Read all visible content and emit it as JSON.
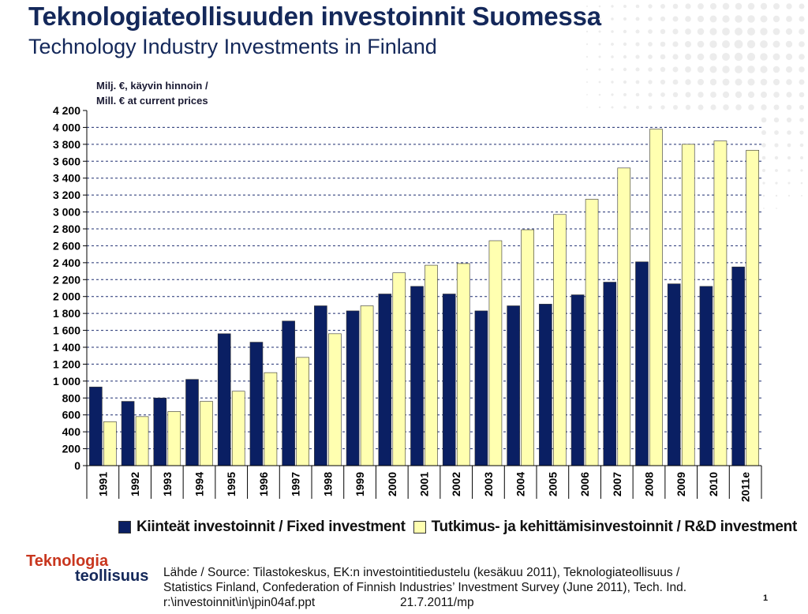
{
  "header": {
    "title_fi": "Teknologiateollisuuden investoinnit Suomessa",
    "title_en": "Technology Industry Investments in Finland"
  },
  "chart_data": {
    "type": "bar",
    "unit_line1": "Milj. €, käyvin hinnoin /",
    "unit_line2": "Mill. € at current prices",
    "categories": [
      "1991",
      "1992",
      "1993",
      "1994",
      "1995",
      "1996",
      "1997",
      "1998",
      "1999",
      "2000",
      "2001",
      "2002",
      "2003",
      "2004",
      "2005",
      "2006",
      "2007",
      "2008",
      "2009",
      "2010",
      "2011e"
    ],
    "series": [
      {
        "name": "Kiinteät investoinnit / Fixed investment",
        "color": "#0a1f63",
        "values": [
          930,
          760,
          800,
          1020,
          1560,
          1460,
          1710,
          1890,
          1830,
          2030,
          2120,
          2030,
          1830,
          1890,
          1910,
          2020,
          2170,
          2410,
          2150,
          2120,
          2350
        ]
      },
      {
        "name": "Tutkimus- ja kehittämisinvestoinnit / R&D investment",
        "color": "#ffffb0",
        "values": [
          520,
          580,
          640,
          760,
          880,
          1100,
          1280,
          1560,
          1890,
          2280,
          2370,
          2390,
          2660,
          2790,
          2970,
          3150,
          3520,
          3980,
          3800,
          3840,
          3730
        ]
      }
    ],
    "ylim": [
      0,
      4200
    ],
    "yticks": [
      "0",
      "200",
      "400",
      "600",
      "800",
      "1 000",
      "1 200",
      "1 400",
      "1 600",
      "1 800",
      "2 000",
      "2 200",
      "2 400",
      "2 600",
      "2 800",
      "3 000",
      "3 200",
      "3 400",
      "3 600",
      "3 800",
      "4 000",
      "4 200"
    ],
    "grid": true,
    "legend_position": "bottom"
  },
  "footer": {
    "logo_line1": "Teknologia",
    "logo_line2": "teollisuus",
    "source_line1": "Lähde / Source: Tilastokeskus, EK:n investointitiedustelu (kesäkuu 2011), Teknologiateollisuus /",
    "source_line2": "Statistics Finland, Confederation of Finnish Industries’ Investment Survey (June 2011), Tech. Ind.",
    "file_path": "r:\\investoinnit\\in\\jpin04af.ppt",
    "date": "21.7.2011/mp",
    "page_number": "1"
  }
}
